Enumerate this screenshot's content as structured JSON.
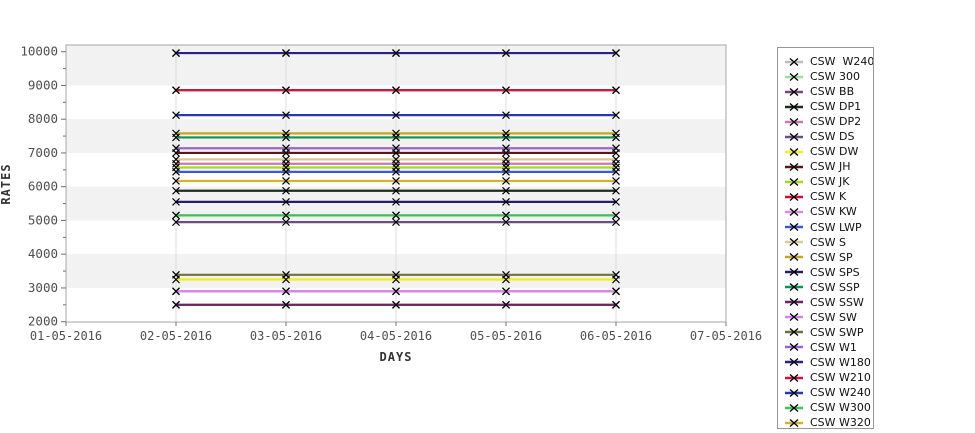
{
  "chart_data": {
    "type": "line",
    "title": "",
    "xlabel": "DAYS",
    "ylabel": "RATES",
    "ylim": [
      2000,
      10000
    ],
    "y_ticks": [
      2000,
      3000,
      4000,
      5000,
      6000,
      7000,
      8000,
      9000,
      10000
    ],
    "y_minor_tick_step": 500,
    "x_tick_labels": [
      "01-05-2016",
      "02-05-2016",
      "03-05-2016",
      "04-05-2016",
      "05-05-2016",
      "06-05-2016",
      "07-05-2016"
    ],
    "data_dates": [
      "02-05-2016",
      "03-05-2016",
      "04-05-2016",
      "05-05-2016",
      "06-05-2016"
    ],
    "data_date_index_range": [
      1,
      5
    ],
    "shaded_bands": [
      [
        9000,
        10000
      ],
      [
        7000,
        8000
      ],
      [
        5000,
        6000
      ],
      [
        3000,
        4000
      ]
    ],
    "legend_position": "right",
    "marker": "x",
    "marker_color": "#000000",
    "series": [
      {
        "name": "CSW  W240",
        "color": "#bcbcbc",
        "value": 9960
      },
      {
        "name": "CSW 300",
        "color": "#98e098",
        "value": 5150
      },
      {
        "name": "CSW BB",
        "color": "#7a4878",
        "value": 2500
      },
      {
        "name": "CSW DP1",
        "color": "#1c2c1c",
        "value": 5880
      },
      {
        "name": "CSW DP2",
        "color": "#c878b4",
        "value": 6680
      },
      {
        "name": "CSW DS",
        "color": "#6c4c82",
        "value": 4950
      },
      {
        "name": "CSW DW",
        "color": "#eeee22",
        "value": 3250
      },
      {
        "name": "CSW JH",
        "color": "#5c1616",
        "value": 7000
      },
      {
        "name": "CSW JK",
        "color": "#a2dc20",
        "value": 6570
      },
      {
        "name": "CSW K",
        "color": "#cc1038",
        "value": 8860
      },
      {
        "name": "CSW KW",
        "color": "#d88ae0",
        "value": 2900
      },
      {
        "name": "CSW LWP",
        "color": "#3c58d8",
        "value": 6440
      },
      {
        "name": "CSW S",
        "color": "#d8c894",
        "value": 6810
      },
      {
        "name": "CSW SP",
        "color": "#c6a51c",
        "value": 7580
      },
      {
        "name": "CSW SPS",
        "color": "#241e6a",
        "value": 5550
      },
      {
        "name": "CSW SSP",
        "color": "#0f9454",
        "value": 7460
      },
      {
        "name": "CSW SSW",
        "color": "#6e2464",
        "value": 2500
      },
      {
        "name": "CSW SW",
        "color": "#d682e6",
        "value": 2900
      },
      {
        "name": "CSW SWP",
        "color": "#70703e",
        "value": 3390
      },
      {
        "name": "CSW W1",
        "color": "#9a62d8",
        "value": 7140
      },
      {
        "name": "CSW W180",
        "color": "#2c1f8a",
        "value": 9960
      },
      {
        "name": "CSW W210",
        "color": "#cc1440",
        "value": 8860
      },
      {
        "name": "CSW W240",
        "color": "#2838b4",
        "value": 8120
      },
      {
        "name": "CSW W300",
        "color": "#44bc5c",
        "value": 5150
      },
      {
        "name": "CSW W320",
        "color": "#d2b42c",
        "value": 6170
      }
    ],
    "colors": {
      "band_fill": "#f2f2f2",
      "grid_line": "#dcdcdc",
      "plot_border": "#a6a6a6",
      "tick": "#707070",
      "tick_label": "#4f4f4f"
    }
  }
}
